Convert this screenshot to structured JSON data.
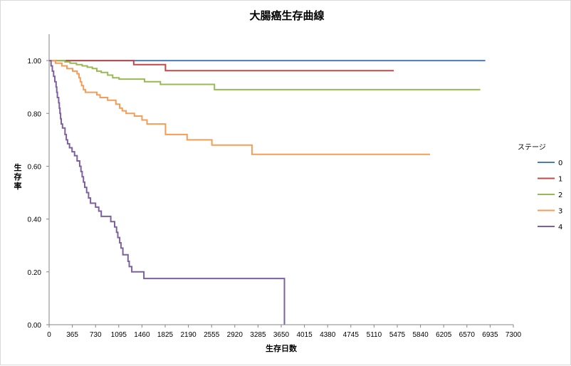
{
  "chart_data": {
    "type": "line",
    "step": true,
    "title": "大腸癌生存曲線",
    "xlabel": "生存日数",
    "ylabel": "生存率",
    "xlim": [
      0,
      7300
    ],
    "ylim": [
      0,
      1.1
    ],
    "x_ticks": [
      0,
      365,
      730,
      1095,
      1460,
      1825,
      2190,
      2555,
      2920,
      3285,
      3650,
      4015,
      4380,
      4745,
      5110,
      5475,
      5840,
      6205,
      6570,
      6935,
      7300
    ],
    "x_tick_labels": [
      "0",
      "365",
      "730",
      "1095",
      "1460",
      "1825",
      "2190",
      "2555",
      "2920",
      "3285",
      "3650",
      "4015",
      "4380",
      "4745",
      "5110",
      "5475",
      "5840",
      "6205",
      "6570",
      "6935",
      "7300"
    ],
    "y_ticks": [
      0,
      0.2,
      0.4,
      0.6,
      0.8,
      1.0
    ],
    "y_tick_labels": [
      "0.00",
      "0.20",
      "0.40",
      "0.60",
      "0.80",
      "1.00"
    ],
    "grid": false,
    "legend": {
      "title": "ステージ",
      "position": "right"
    },
    "series": [
      {
        "name": "0",
        "color": "#4a7ebb",
        "points": [
          [
            0,
            1.0
          ],
          [
            6860,
            1.0
          ]
        ]
      },
      {
        "name": "1",
        "color": "#be4b48",
        "points": [
          [
            0,
            1.0
          ],
          [
            1330,
            1.0
          ],
          [
            1330,
            0.985
          ],
          [
            1830,
            0.985
          ],
          [
            1830,
            0.962
          ],
          [
            5420,
            0.962
          ]
        ]
      },
      {
        "name": "2",
        "color": "#98b954",
        "points": [
          [
            0,
            1.0
          ],
          [
            250,
            1.0
          ],
          [
            250,
            0.995
          ],
          [
            330,
            0.995
          ],
          [
            330,
            0.99
          ],
          [
            430,
            0.99
          ],
          [
            430,
            0.985
          ],
          [
            520,
            0.985
          ],
          [
            520,
            0.98
          ],
          [
            600,
            0.98
          ],
          [
            600,
            0.975
          ],
          [
            680,
            0.975
          ],
          [
            680,
            0.97
          ],
          [
            750,
            0.97
          ],
          [
            750,
            0.96
          ],
          [
            820,
            0.96
          ],
          [
            820,
            0.955
          ],
          [
            920,
            0.955
          ],
          [
            920,
            0.945
          ],
          [
            1000,
            0.945
          ],
          [
            1000,
            0.935
          ],
          [
            1100,
            0.935
          ],
          [
            1100,
            0.93
          ],
          [
            1500,
            0.93
          ],
          [
            1500,
            0.92
          ],
          [
            1750,
            0.92
          ],
          [
            1750,
            0.91
          ],
          [
            2600,
            0.91
          ],
          [
            2600,
            0.89
          ],
          [
            6780,
            0.89
          ]
        ]
      },
      {
        "name": "3",
        "color": "#f59d56",
        "points": [
          [
            0,
            1.0
          ],
          [
            100,
            1.0
          ],
          [
            100,
            0.99
          ],
          [
            200,
            0.99
          ],
          [
            200,
            0.98
          ],
          [
            280,
            0.98
          ],
          [
            280,
            0.97
          ],
          [
            370,
            0.97
          ],
          [
            370,
            0.96
          ],
          [
            440,
            0.96
          ],
          [
            440,
            0.95
          ],
          [
            470,
            0.95
          ],
          [
            470,
            0.935
          ],
          [
            490,
            0.935
          ],
          [
            490,
            0.92
          ],
          [
            510,
            0.92
          ],
          [
            510,
            0.905
          ],
          [
            540,
            0.905
          ],
          [
            540,
            0.89
          ],
          [
            570,
            0.89
          ],
          [
            570,
            0.88
          ],
          [
            750,
            0.88
          ],
          [
            750,
            0.87
          ],
          [
            800,
            0.87
          ],
          [
            800,
            0.86
          ],
          [
            920,
            0.86
          ],
          [
            920,
            0.85
          ],
          [
            1050,
            0.85
          ],
          [
            1050,
            0.835
          ],
          [
            1110,
            0.835
          ],
          [
            1110,
            0.82
          ],
          [
            1150,
            0.82
          ],
          [
            1150,
            0.81
          ],
          [
            1210,
            0.81
          ],
          [
            1210,
            0.8
          ],
          [
            1340,
            0.8
          ],
          [
            1340,
            0.79
          ],
          [
            1460,
            0.79
          ],
          [
            1460,
            0.775
          ],
          [
            1540,
            0.775
          ],
          [
            1540,
            0.76
          ],
          [
            1830,
            0.76
          ],
          [
            1830,
            0.72
          ],
          [
            2170,
            0.72
          ],
          [
            2170,
            0.7
          ],
          [
            2560,
            0.7
          ],
          [
            2560,
            0.68
          ],
          [
            3190,
            0.68
          ],
          [
            3190,
            0.645
          ],
          [
            5990,
            0.645
          ]
        ]
      },
      {
        "name": "4",
        "color": "#7d60a0",
        "points": [
          [
            0,
            1.0
          ],
          [
            30,
            1.0
          ],
          [
            30,
            0.98
          ],
          [
            50,
            0.98
          ],
          [
            50,
            0.96
          ],
          [
            70,
            0.96
          ],
          [
            70,
            0.94
          ],
          [
            90,
            0.94
          ],
          [
            90,
            0.92
          ],
          [
            110,
            0.92
          ],
          [
            110,
            0.9
          ],
          [
            120,
            0.9
          ],
          [
            120,
            0.88
          ],
          [
            130,
            0.88
          ],
          [
            130,
            0.86
          ],
          [
            150,
            0.86
          ],
          [
            150,
            0.84
          ],
          [
            160,
            0.84
          ],
          [
            160,
            0.82
          ],
          [
            170,
            0.82
          ],
          [
            170,
            0.8
          ],
          [
            180,
            0.8
          ],
          [
            180,
            0.78
          ],
          [
            190,
            0.78
          ],
          [
            190,
            0.76
          ],
          [
            210,
            0.76
          ],
          [
            210,
            0.745
          ],
          [
            250,
            0.745
          ],
          [
            250,
            0.72
          ],
          [
            270,
            0.72
          ],
          [
            270,
            0.7
          ],
          [
            290,
            0.7
          ],
          [
            290,
            0.685
          ],
          [
            320,
            0.685
          ],
          [
            320,
            0.67
          ],
          [
            360,
            0.67
          ],
          [
            360,
            0.655
          ],
          [
            400,
            0.655
          ],
          [
            400,
            0.64
          ],
          [
            440,
            0.64
          ],
          [
            440,
            0.62
          ],
          [
            480,
            0.62
          ],
          [
            480,
            0.6
          ],
          [
            500,
            0.6
          ],
          [
            500,
            0.58
          ],
          [
            520,
            0.58
          ],
          [
            520,
            0.56
          ],
          [
            540,
            0.56
          ],
          [
            540,
            0.54
          ],
          [
            560,
            0.54
          ],
          [
            560,
            0.52
          ],
          [
            590,
            0.52
          ],
          [
            590,
            0.5
          ],
          [
            620,
            0.5
          ],
          [
            620,
            0.48
          ],
          [
            650,
            0.48
          ],
          [
            650,
            0.46
          ],
          [
            730,
            0.46
          ],
          [
            730,
            0.445
          ],
          [
            780,
            0.445
          ],
          [
            780,
            0.43
          ],
          [
            820,
            0.43
          ],
          [
            820,
            0.41
          ],
          [
            970,
            0.41
          ],
          [
            970,
            0.39
          ],
          [
            1030,
            0.39
          ],
          [
            1030,
            0.37
          ],
          [
            1060,
            0.37
          ],
          [
            1060,
            0.35
          ],
          [
            1080,
            0.35
          ],
          [
            1080,
            0.33
          ],
          [
            1110,
            0.33
          ],
          [
            1110,
            0.31
          ],
          [
            1130,
            0.31
          ],
          [
            1130,
            0.29
          ],
          [
            1160,
            0.29
          ],
          [
            1160,
            0.265
          ],
          [
            1240,
            0.265
          ],
          [
            1240,
            0.24
          ],
          [
            1260,
            0.24
          ],
          [
            1260,
            0.22
          ],
          [
            1300,
            0.22
          ],
          [
            1300,
            0.2
          ],
          [
            1490,
            0.2
          ],
          [
            1490,
            0.175
          ],
          [
            3700,
            0.175
          ],
          [
            3700,
            0.0
          ]
        ]
      }
    ]
  }
}
